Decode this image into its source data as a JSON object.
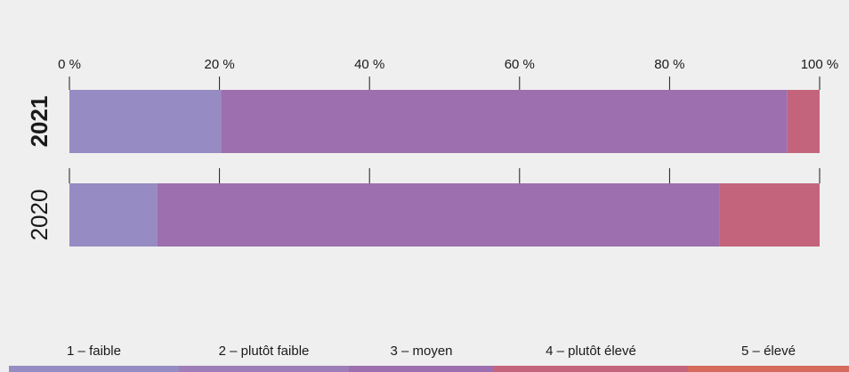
{
  "chart_data": {
    "type": "bar",
    "orientation": "horizontal",
    "stacked": true,
    "categories": [
      "2021",
      "2020"
    ],
    "category_bold": [
      true,
      false
    ],
    "x_tick_labels": [
      "0 %",
      "20 %",
      "40 %",
      "60 %",
      "80 %",
      "100 %"
    ],
    "xlim": [
      0,
      100
    ],
    "legend_position": "bottom",
    "series": [
      {
        "name": "1 – faible",
        "color": "#978bc3",
        "values": [
          20.2,
          11.7
        ]
      },
      {
        "name": "2 – plutôt faible",
        "color": "#9d6fae",
        "values": [
          75.5,
          75.0
        ]
      },
      {
        "name": "3 – moyen",
        "color": "#9d6fae",
        "values": [
          0,
          0
        ]
      },
      {
        "name": "4 – plutôt élevé",
        "color": "#c4647c",
        "values": [
          4.3,
          13.3
        ]
      },
      {
        "name": "5 – élevé",
        "color": "#d66a5c",
        "values": [
          0,
          0
        ]
      }
    ],
    "legend_colors": [
      "#978bc3",
      "#9d7eb9",
      "#9d6fae",
      "#c4647c",
      "#d66a5c"
    ]
  }
}
